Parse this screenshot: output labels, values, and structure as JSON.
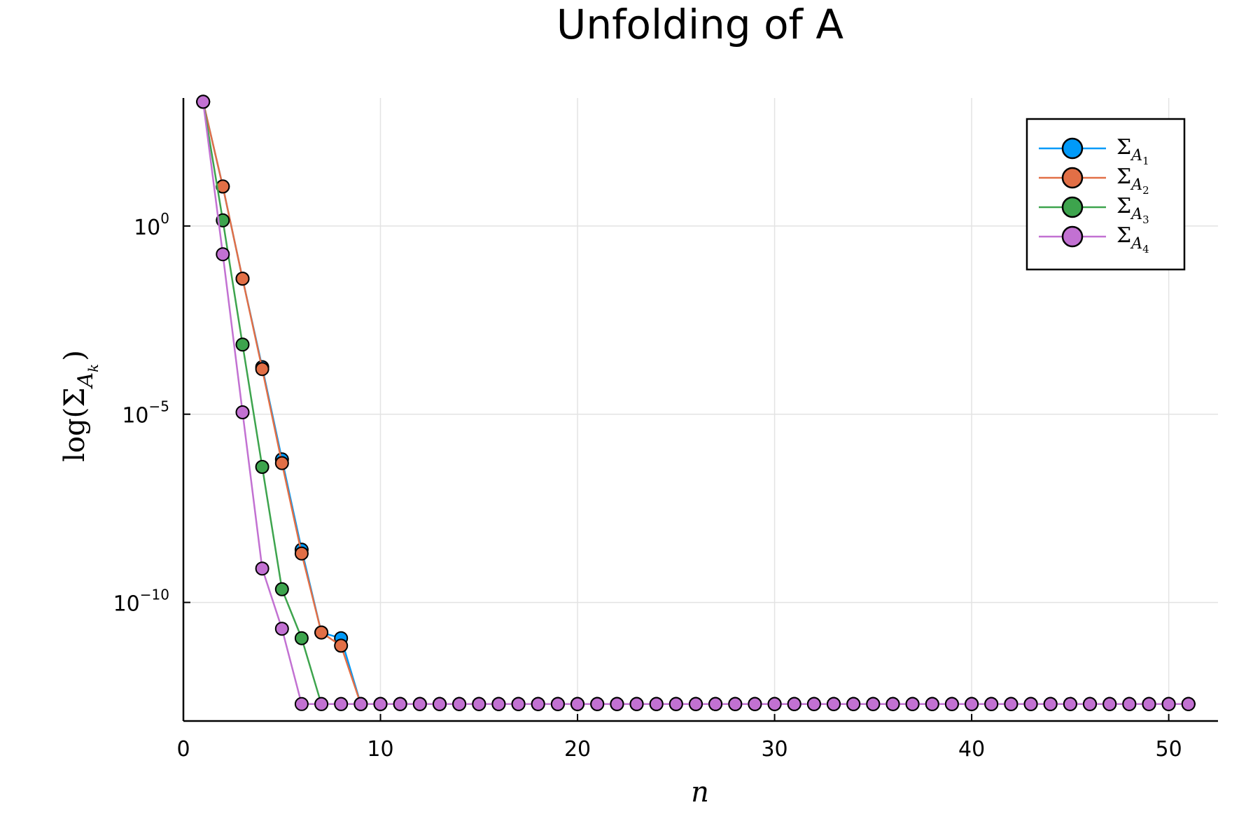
{
  "chart_data": {
    "type": "line",
    "title": "Unfolding of A",
    "xlabel": "n",
    "ylabel": "log(Σ",
    "ylabel_sub": "A",
    "ylabel_subsub": "k",
    "ylabel_close": ")",
    "xlim": [
      0,
      52.5
    ],
    "xticks": [
      0,
      10,
      20,
      30,
      40,
      50
    ],
    "ylog10_lim": [
      -13.15,
      3.4
    ],
    "yticks": [
      {
        "exp": 0,
        "base": "10",
        "label": "0"
      },
      {
        "exp": -5,
        "base": "10",
        "label": "−5"
      },
      {
        "exp": -10,
        "base": "10",
        "label": "−10"
      }
    ],
    "grid": true,
    "legend_position": "top-right",
    "floor_log10": -12.7,
    "series": [
      {
        "name": "Σ",
        "sub": "A",
        "subsub": "1",
        "color": "#009af9",
        "log10_values": [
          3.3,
          1.05,
          -1.4,
          -3.75,
          -6.2,
          -8.6,
          -10.8,
          -10.95
        ]
      },
      {
        "name": "Σ",
        "sub": "A",
        "subsub": "2",
        "color": "#e26f46",
        "log10_values": [
          3.3,
          1.05,
          -1.4,
          -3.8,
          -6.3,
          -8.7,
          -10.8,
          -11.15
        ]
      },
      {
        "name": "Σ",
        "sub": "A",
        "subsub": "3",
        "color": "#3da44d",
        "log10_values": [
          3.3,
          0.15,
          -3.15,
          -6.4,
          -9.65,
          -10.95
        ]
      },
      {
        "name": "Σ",
        "sub": "A",
        "subsub": "4",
        "color": "#c271d2",
        "log10_values": [
          3.3,
          -0.75,
          -4.95,
          -9.1,
          -10.7
        ]
      }
    ]
  }
}
